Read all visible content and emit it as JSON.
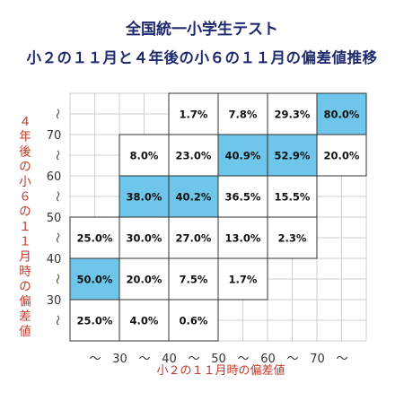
{
  "header": {
    "title": "全国統一小学生テスト",
    "subtitle": "小２の１１月と４年後の小６の１１月の偏差値推移"
  },
  "chart_data": {
    "type": "heatmap",
    "xlabel": "小２の１１月時の偏差値",
    "ylabel": "４年後の小６の１１月時の偏差値",
    "x_tick_labels": [
      "〜",
      "30",
      "〜",
      "40",
      "〜",
      "50",
      "〜",
      "60",
      "〜",
      "70",
      "〜"
    ],
    "y_tick_labels": [
      "〜",
      "70",
      "〜",
      "60",
      "〜",
      "50",
      "〜",
      "40",
      "〜",
      "30",
      "〜"
    ],
    "columns": [
      "〜30",
      "30〜40",
      "40〜50",
      "50〜60",
      "60〜70",
      "70〜"
    ],
    "rows": [
      "70〜",
      "60〜70",
      "50〜60",
      "40〜50",
      "30〜40",
      "〜30"
    ],
    "cells": [
      [
        "",
        "",
        "1.7%",
        "7.8%",
        "29.3%",
        "80.0%"
      ],
      [
        "",
        "8.0%",
        "23.0%",
        "40.9%",
        "52.9%",
        "20.0%"
      ],
      [
        "",
        "38.0%",
        "40.2%",
        "36.5%",
        "15.5%",
        ""
      ],
      [
        "25.0%",
        "30.0%",
        "27.0%",
        "13.0%",
        "2.3%",
        ""
      ],
      [
        "50.0%",
        "20.0%",
        "7.5%",
        "1.7%",
        "",
        ""
      ],
      [
        "25.0%",
        "4.0%",
        "0.6%",
        "",
        "",
        ""
      ]
    ],
    "highlighted": [
      [
        0,
        5
      ],
      [
        1,
        3
      ],
      [
        1,
        4
      ],
      [
        2,
        1
      ],
      [
        2,
        2
      ],
      [
        4,
        0
      ]
    ],
    "colors": {
      "highlight": "#6ec6ea",
      "grid": "#cfcfcf",
      "cell_border": "#333333",
      "title": "#1f2a6e",
      "axis_label": "#c0392b"
    }
  }
}
